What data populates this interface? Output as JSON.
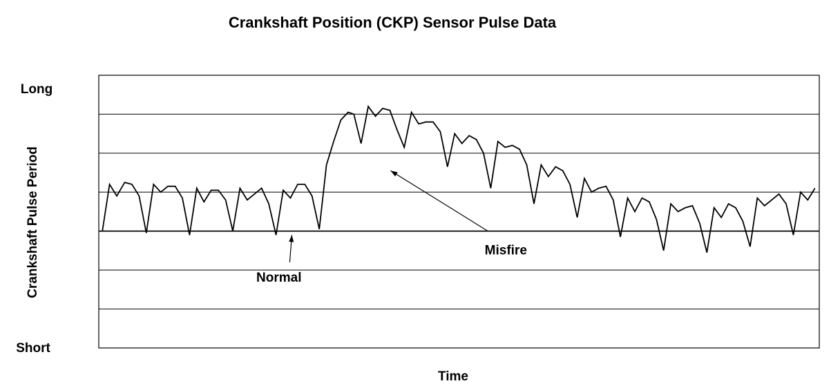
{
  "chart_data": {
    "type": "line",
    "title": "Crankshaft Position (CKP) Sensor Pulse Data",
    "xlabel": "Time",
    "ylabel": "Crankshaft Pulse Period",
    "y_top_label": "Long",
    "y_bottom_label": "Short",
    "grid": true,
    "ylim": [
      0,
      7
    ],
    "xlim": [
      0,
      100
    ],
    "gridlines_y": [
      1,
      2,
      3,
      4,
      5,
      6
    ],
    "annotations": [
      {
        "text": "Normal",
        "x": 25,
        "y": 1.7,
        "arrow_from": [
          26.5,
          2.2
        ],
        "arrow_to": [
          26.8,
          2.9
        ]
      },
      {
        "text": "Misfire",
        "x": 56.5,
        "y": 2.4,
        "arrow_from": [
          54,
          3.0
        ],
        "arrow_to": [
          40.5,
          4.55
        ]
      }
    ],
    "series": [
      {
        "values": [
          [
            0.5,
            3.0
          ],
          [
            1.5,
            4.2
          ],
          [
            2.5,
            3.9
          ],
          [
            3.6,
            4.25
          ],
          [
            4.6,
            4.2
          ],
          [
            5.6,
            3.9
          ],
          [
            6.6,
            2.95
          ],
          [
            7.6,
            4.2
          ],
          [
            8.6,
            4.0
          ],
          [
            9.6,
            4.15
          ],
          [
            10.6,
            4.15
          ],
          [
            11.6,
            3.85
          ],
          [
            12.6,
            2.9
          ],
          [
            13.6,
            4.1
          ],
          [
            14.6,
            3.75
          ],
          [
            15.6,
            4.05
          ],
          [
            16.6,
            4.05
          ],
          [
            17.6,
            3.8
          ],
          [
            18.6,
            3.0
          ],
          [
            19.6,
            4.1
          ],
          [
            20.6,
            3.8
          ],
          [
            21.6,
            3.95
          ],
          [
            22.6,
            4.1
          ],
          [
            23.6,
            3.7
          ],
          [
            24.6,
            2.9
          ],
          [
            25.6,
            4.05
          ],
          [
            26.6,
            3.85
          ],
          [
            27.6,
            4.2
          ],
          [
            28.6,
            4.2
          ],
          [
            29.6,
            3.9
          ],
          [
            30.6,
            3.05
          ],
          [
            31.6,
            4.7
          ],
          [
            32.6,
            5.3
          ],
          [
            33.6,
            5.85
          ],
          [
            34.6,
            6.05
          ],
          [
            35.4,
            6.0
          ],
          [
            36.4,
            5.25
          ],
          [
            37.4,
            6.2
          ],
          [
            38.4,
            5.95
          ],
          [
            39.4,
            6.15
          ],
          [
            40.4,
            6.1
          ],
          [
            41.4,
            5.6
          ],
          [
            42.4,
            5.15
          ],
          [
            43.4,
            6.05
          ],
          [
            44.4,
            5.75
          ],
          [
            45.4,
            5.8
          ],
          [
            46.4,
            5.8
          ],
          [
            47.4,
            5.55
          ],
          [
            48.4,
            4.65
          ],
          [
            49.4,
            5.5
          ],
          [
            50.4,
            5.25
          ],
          [
            51.4,
            5.45
          ],
          [
            52.4,
            5.35
          ],
          [
            53.4,
            5.0
          ],
          [
            54.4,
            4.1
          ],
          [
            55.4,
            5.3
          ],
          [
            56.4,
            5.15
          ],
          [
            57.4,
            5.2
          ],
          [
            58.4,
            5.1
          ],
          [
            59.4,
            4.7
          ],
          [
            60.4,
            3.7
          ],
          [
            61.4,
            4.7
          ],
          [
            62.4,
            4.4
          ],
          [
            63.4,
            4.65
          ],
          [
            64.4,
            4.55
          ],
          [
            65.4,
            4.2
          ],
          [
            66.4,
            3.35
          ],
          [
            67.4,
            4.35
          ],
          [
            68.4,
            4.0
          ],
          [
            69.4,
            4.1
          ],
          [
            70.4,
            4.15
          ],
          [
            71.4,
            3.8
          ],
          [
            72.4,
            2.85
          ],
          [
            73.4,
            3.85
          ],
          [
            74.4,
            3.5
          ],
          [
            75.4,
            3.85
          ],
          [
            76.4,
            3.75
          ],
          [
            77.4,
            3.3
          ],
          [
            78.4,
            2.5
          ],
          [
            79.4,
            3.7
          ],
          [
            80.4,
            3.5
          ],
          [
            81.4,
            3.6
          ],
          [
            82.4,
            3.65
          ],
          [
            83.4,
            3.2
          ],
          [
            84.4,
            2.45
          ],
          [
            85.4,
            3.6
          ],
          [
            86.4,
            3.35
          ],
          [
            87.4,
            3.7
          ],
          [
            88.4,
            3.6
          ],
          [
            89.4,
            3.25
          ],
          [
            90.4,
            2.6
          ],
          [
            91.4,
            3.85
          ],
          [
            92.4,
            3.65
          ],
          [
            93.4,
            3.8
          ],
          [
            94.4,
            3.95
          ],
          [
            95.4,
            3.7
          ],
          [
            96.4,
            2.9
          ],
          [
            97.4,
            4.0
          ],
          [
            98.4,
            3.8
          ],
          [
            99.4,
            4.1
          ]
        ]
      }
    ]
  }
}
